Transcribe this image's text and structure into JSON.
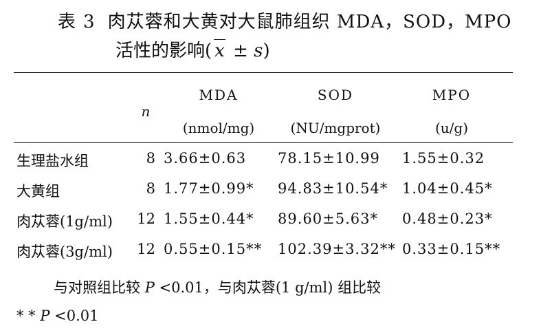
{
  "caption": {
    "label": "表",
    "number": "3",
    "title_line1": "肉苁蓉和大黄对大鼠肺组织 MDA，SOD，MPO",
    "title_line2_prefix": "活性的影响(",
    "xbar_symbol": "x",
    "pm_text": " ± ",
    "s_symbol": "s",
    "title_line2_suffix": ")"
  },
  "table": {
    "header_n": "n",
    "header_mda": "MDA",
    "header_sod": "SOD",
    "header_mpo": "MPO",
    "unit_mda": "(nmol/mg)",
    "unit_sod": "(NU/mgprot)",
    "unit_mpo": "(u/g)",
    "rows": [
      {
        "group": "生理盐水组",
        "n": "8",
        "mda": "3.66±0.63",
        "sod": "78.15±10.99",
        "mpo": "1.55±0.32"
      },
      {
        "group": "大黄组",
        "n": "8",
        "mda": "1.77±0.99*",
        "sod": "94.83±10.54*",
        "mpo": "1.04±0.45*"
      },
      {
        "group": "肉苁蓉(1g/ml)",
        "n": "12",
        "mda": "1.55±0.44*",
        "sod": "89.60±5.63*",
        "mpo": "0.48±0.23*"
      },
      {
        "group": "肉苁蓉(3g/ml)",
        "n": "12",
        "mda": "0.55±0.15**",
        "sod": "102.39±3.32**",
        "mpo": "0.33±0.15**"
      }
    ]
  },
  "notes": {
    "line1_prefix": "与对照组比较 ",
    "line1_p": "P",
    "line1_suffix": " <0.01，与肉苁蓉(1 g/ml) 组比较",
    "line2_stars": "* * ",
    "line2_p": "P",
    "line2_suffix": " <0.01"
  }
}
